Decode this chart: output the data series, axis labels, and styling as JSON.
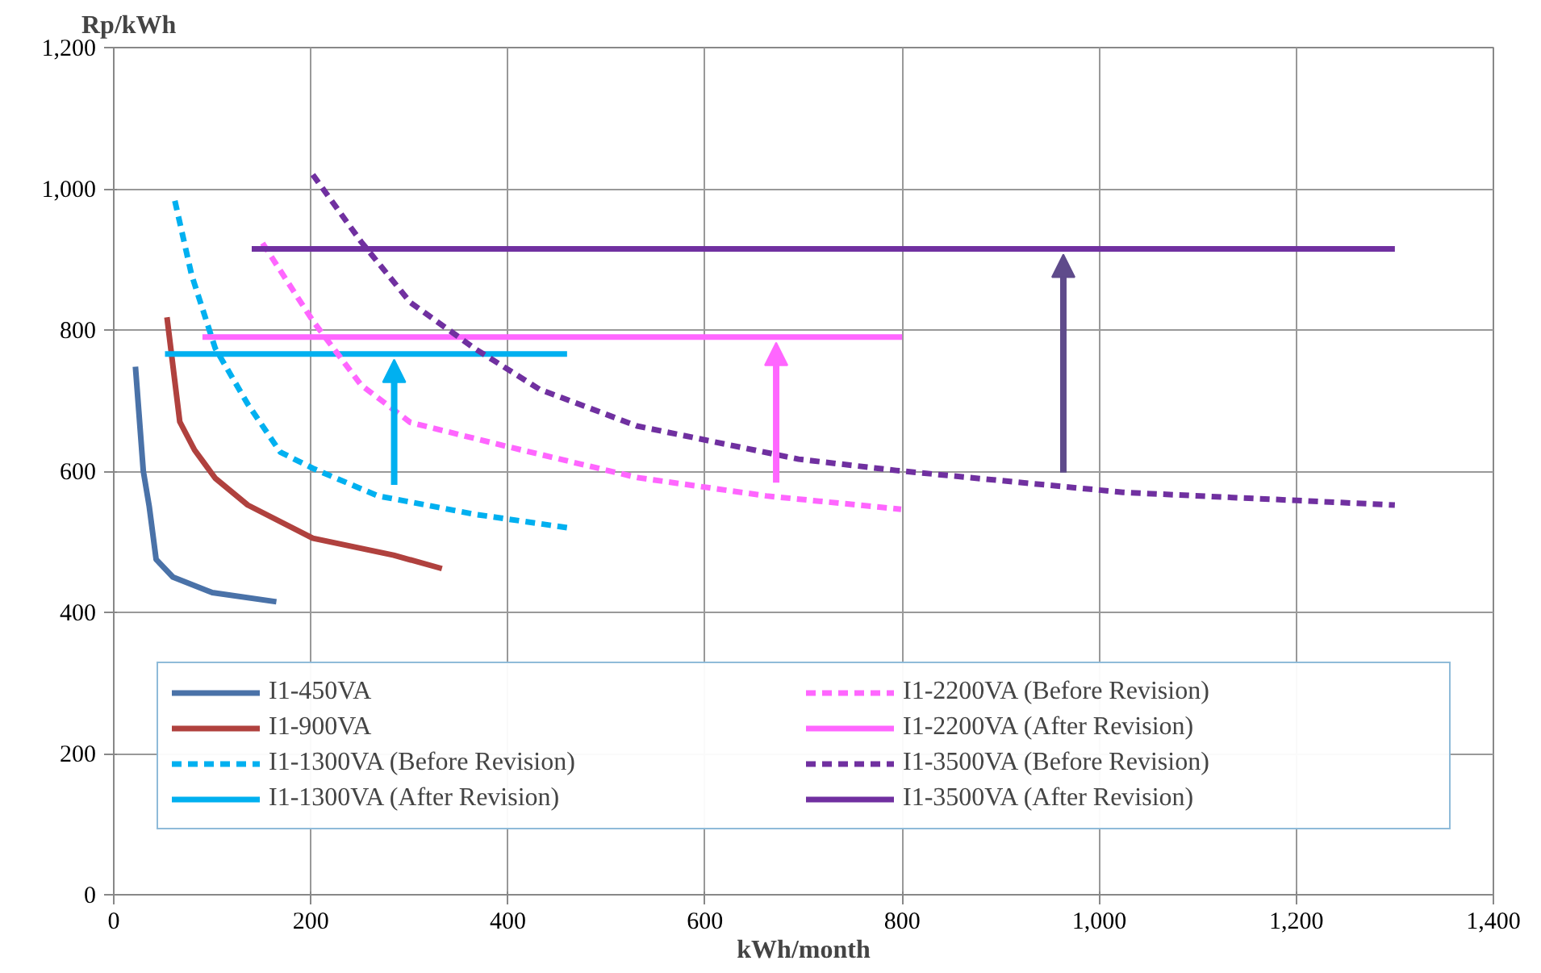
{
  "chart_data": {
    "type": "line",
    "xlabel": "kWh/month",
    "ylabel": "Rp/kWh",
    "xlim": [
      0,
      1400
    ],
    "ylim": [
      0,
      1200
    ],
    "xticks": [
      0,
      200,
      400,
      600,
      800,
      {
        "value": 1000,
        "label": "1,000"
      },
      {
        "value": 1200,
        "label": "1,200"
      },
      {
        "value": 1400,
        "label": "1,400"
      }
    ],
    "yticks": [
      0,
      200,
      400,
      600,
      800,
      {
        "value": 1000,
        "label": "1,000"
      },
      {
        "value": 1200,
        "label": "1,200"
      }
    ],
    "grid": true,
    "legend": "bottom",
    "marker": "none",
    "series": [
      {
        "name": "I1-450VA",
        "color": "#4a72a8",
        "line_style": "solid",
        "x": [
          22,
          30,
          36,
          43,
          60,
          100,
          165
        ],
        "values": [
          748,
          600,
          550,
          475,
          450,
          428,
          415
        ]
      },
      {
        "name": "I1-900VA",
        "color": "#b0413e",
        "line_style": "solid",
        "x": [
          54,
          67,
          82,
          103,
          136,
          202,
          284,
          333
        ],
        "values": [
          818,
          670,
          630,
          590,
          552,
          505,
          481,
          462
        ]
      },
      {
        "name": "I1-1300VA (Before Revision)",
        "color": "#00b0f0",
        "line_style": "dashed",
        "x": [
          62,
          79,
          103,
          136,
          169,
          202,
          268,
          366,
          460
        ],
        "values": [
          983,
          878,
          774,
          695,
          627,
          604,
          565,
          539,
          520
        ]
      },
      {
        "name": "I1-1300VA (After Revision)",
        "color": "#00b0f0",
        "line_style": "solid",
        "x": [
          52,
          460
        ],
        "values": [
          766,
          766
        ]
      },
      {
        "name": "I1-2200VA (Before Revision)",
        "color": "#ff66ff",
        "line_style": "dashed",
        "x": [
          151,
          202,
          251,
          301,
          399,
          531,
          662,
          799
        ],
        "values": [
          923,
          813,
          722,
          669,
          635,
          591,
          565,
          546
        ]
      },
      {
        "name": "I1-2200VA (After Revision)",
        "color": "#ff66ff",
        "line_style": "solid",
        "x": [
          90,
          800
        ],
        "values": [
          790,
          790
        ]
      },
      {
        "name": "I1-3500VA (Before Revision)",
        "color": "#7030a0",
        "line_style": "dashed",
        "x": [
          202,
          251,
          301,
          366,
          432,
          531,
          695,
          794,
          1024,
          1300
        ],
        "values": [
          1020,
          925,
          839,
          774,
          716,
          664,
          617,
          601,
          570,
          552
        ]
      },
      {
        "name": "I1-3500VA (After Revision)",
        "color": "#7030a0",
        "line_style": "solid",
        "x": [
          140,
          1300
        ],
        "values": [
          915,
          915
        ]
      }
    ]
  }
}
